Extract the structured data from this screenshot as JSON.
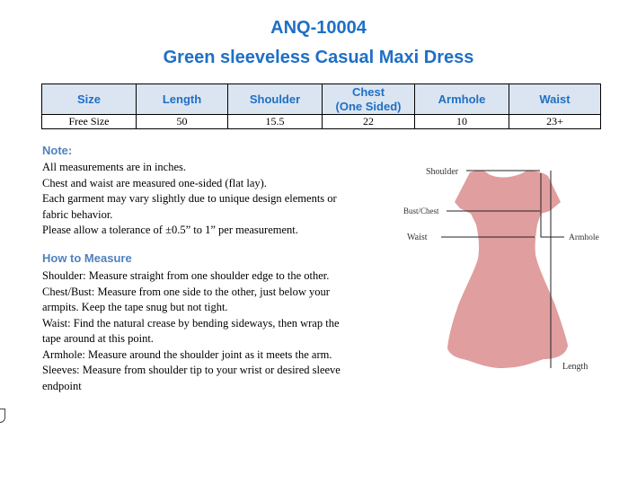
{
  "header": {
    "code": "ANQ-10004",
    "product_name": "Green sleeveless Casual Maxi Dress"
  },
  "size_table": {
    "headers": [
      "Size",
      "Length",
      "Shoulder",
      "Chest\n(One Sided)",
      "Armhole",
      "Waist"
    ],
    "rows": [
      [
        "Free Size",
        "50",
        "15.5",
        "22",
        "10",
        "23+"
      ]
    ]
  },
  "note": {
    "heading": "Note:",
    "lines": [
      "All measurements are in inches.",
      "Chest and waist are measured one-sided (flat lay).",
      "Each garment may vary slightly due to unique design elements or",
      "fabric behavior.",
      "Please allow a tolerance of ±0.5” to 1” per measurement."
    ]
  },
  "how_to": {
    "heading": "How to Measure",
    "lines": [
      "Shoulder: Measure straight from one shoulder edge to the other.",
      "Chest/Bust: Measure from one side to the other, just below your",
      "armpits. Keep the tape snug but not tight.",
      "Waist: Find the natural crease by bending sideways, then wrap the",
      "tape around at this point.",
      "Armhole: Measure around the shoulder joint as it meets the arm.",
      "Sleeves: Measure from shoulder tip to your wrist or desired sleeve",
      "endpoint"
    ]
  },
  "diagram": {
    "labels": {
      "shoulder": "Shoulder",
      "bust": "Bust/Chest",
      "waist": "Waist",
      "armhole": "Armhole",
      "length": "Length"
    },
    "dress_color": "#e09e9e"
  }
}
